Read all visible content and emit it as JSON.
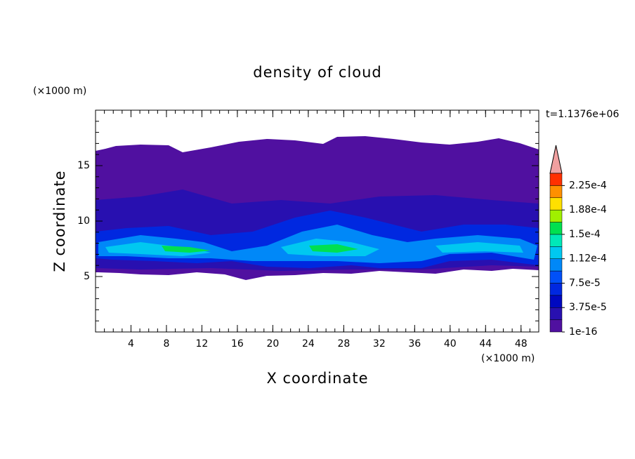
{
  "chart_data": {
    "type": "contour",
    "title": "density of cloud",
    "xlabel": "X coordinate",
    "ylabel": "Z coordinate",
    "x_unit": "(×1000 m)",
    "y_unit": "(×1000 m)",
    "time_label": "t=1.1376e+06",
    "xlim": [
      0,
      50
    ],
    "xticks": [
      4,
      8,
      12,
      16,
      20,
      24,
      28,
      32,
      36,
      40,
      44,
      48
    ],
    "ylim": [
      0,
      20
    ],
    "yticks": [
      5,
      10,
      15
    ],
    "xminor_step": 1,
    "yminor_step": 1,
    "levels": [
      1e-16,
      1.875e-05,
      3.75e-05,
      5.625e-05,
      7.5e-05,
      9.375e-05,
      0.0001125,
      0.00013125,
      0.00015,
      0.00016875,
      0.0001875,
      0.00020625,
      0.000225,
      0.00024375
    ],
    "level_colors": [
      "#5010a0",
      "#2810b0",
      "#0008c0",
      "#0028e0",
      "#0050f8",
      "#0088f8",
      "#00c8f0",
      "#00e8b8",
      "#00e050",
      "#a0f000",
      "#ffe000",
      "#ff9000",
      "#ff3000"
    ],
    "extend_color": "#f0a0a0",
    "colorbar_ticks": [
      {
        "value": 1e-16,
        "label": "1e-16"
      },
      {
        "value": 3.75e-05,
        "label": "3.75e-5"
      },
      {
        "value": 7.5e-05,
        "label": "7.5e-5"
      },
      {
        "value": 0.0001125,
        "label": "1.12e-4"
      },
      {
        "value": 0.00015,
        "label": "1.5e-4"
      },
      {
        "value": 0.0001875,
        "label": "1.88e-4"
      },
      {
        "value": 0.000225,
        "label": "2.25e-4"
      }
    ]
  }
}
